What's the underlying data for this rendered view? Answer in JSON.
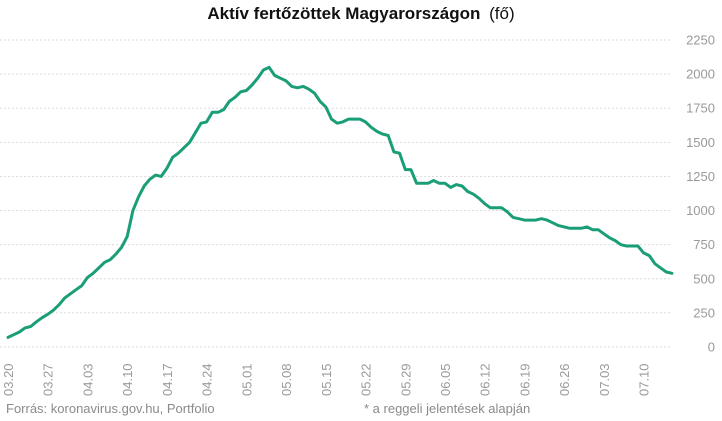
{
  "chart_data": {
    "type": "line",
    "title": "Aktív fertőzöttek Magyarországon",
    "title_unit": "(fő)",
    "xlabel": "",
    "ylabel": "",
    "ylim": [
      0,
      2250
    ],
    "y_ticks": [
      0,
      250,
      500,
      750,
      1000,
      1250,
      1500,
      1750,
      2000,
      2250
    ],
    "y_axis_position": "right",
    "grid": true,
    "line_color": "#1a9e78",
    "x_tick_labels": [
      "03.20",
      "03.27",
      "04.03",
      "04.10",
      "04.17",
      "04.24",
      "05.01",
      "05.08",
      "05.15",
      "05.22",
      "05.29",
      "06.05",
      "06.12",
      "06.19",
      "06.26",
      "07.03",
      "07.10"
    ],
    "series": [
      {
        "values": [
          70,
          90,
          110,
          140,
          150,
          185,
          215,
          240,
          270,
          310,
          360,
          390,
          420,
          450,
          510,
          540,
          580,
          620,
          640,
          680,
          730,
          810,
          1000,
          1100,
          1180,
          1230,
          1260,
          1250,
          1310,
          1390,
          1420,
          1460,
          1500,
          1570,
          1640,
          1650,
          1720,
          1720,
          1740,
          1800,
          1830,
          1870,
          1880,
          1920,
          1970,
          2030,
          2050,
          1990,
          1970,
          1950,
          1910,
          1900,
          1910,
          1890,
          1860,
          1800,
          1760,
          1670,
          1640,
          1650,
          1670,
          1670,
          1670,
          1650,
          1610,
          1580,
          1560,
          1550,
          1430,
          1420,
          1300,
          1300,
          1200,
          1200,
          1200,
          1220,
          1200,
          1200,
          1170,
          1190,
          1180,
          1140,
          1120,
          1090,
          1050,
          1020,
          1020,
          1020,
          990,
          950,
          940,
          930,
          930,
          930,
          940,
          930,
          910,
          890,
          880,
          870,
          870,
          870,
          880,
          860,
          860,
          830,
          800,
          780,
          750,
          740,
          740,
          740,
          690,
          670,
          610,
          580,
          550,
          540
        ]
      }
    ]
  },
  "footer": {
    "source": "Forrás: koronavirus.gov.hu, Portfolio",
    "note": "* a reggeli jelentések alapján"
  }
}
